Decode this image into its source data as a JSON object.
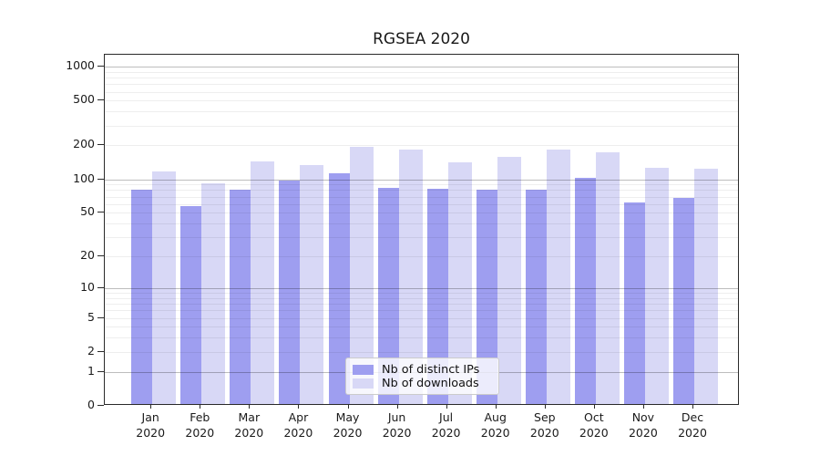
{
  "title": "RGSEA 2020",
  "colors": {
    "ips_bar": "#9e9ef0",
    "downloads_bar": "#d8d8f6",
    "grid_minor": "rgba(0,0,0,0.065)",
    "grid_major": "rgba(0,0,0,0.26)",
    "frame": "#2a2a2a"
  },
  "legend": {
    "items": [
      {
        "label": "Nb of distinct IPs",
        "series": "ips"
      },
      {
        "label": "Nb of downloads",
        "series": "downloads"
      }
    ]
  },
  "chart_data": {
    "type": "bar",
    "title": "RGSEA 2020",
    "xlabel": "",
    "ylabel": "",
    "y_scale": "log1p",
    "grid": true,
    "legend_position": "lower center",
    "ylim": [
      0,
      1270
    ],
    "y_ticks": [
      0,
      1,
      2,
      5,
      10,
      20,
      50,
      100,
      200,
      500,
      1000
    ],
    "y_minor_gridlines": [
      2,
      3,
      4,
      5,
      6,
      7,
      8,
      9,
      20,
      30,
      40,
      50,
      60,
      70,
      80,
      90,
      200,
      300,
      400,
      500,
      600,
      700,
      800,
      900
    ],
    "y_major_gridlines": [
      1,
      10,
      100,
      1000
    ],
    "categories": [
      "Jan 2020",
      "Feb 2020",
      "Mar 2020",
      "Apr 2020",
      "May 2020",
      "Jun 2020",
      "Jul 2020",
      "Aug 2020",
      "Sep 2020",
      "Oct 2020",
      "Nov 2020",
      "Dec 2020"
    ],
    "series": [
      {
        "name": "Nb of distinct IPs",
        "values": [
          81,
          57,
          80,
          98,
          113,
          83,
          82,
          80,
          80,
          103,
          62,
          68
        ]
      },
      {
        "name": "Nb of downloads",
        "values": [
          118,
          92,
          143,
          134,
          195,
          183,
          141,
          159,
          183,
          175,
          126,
          125
        ]
      }
    ]
  }
}
